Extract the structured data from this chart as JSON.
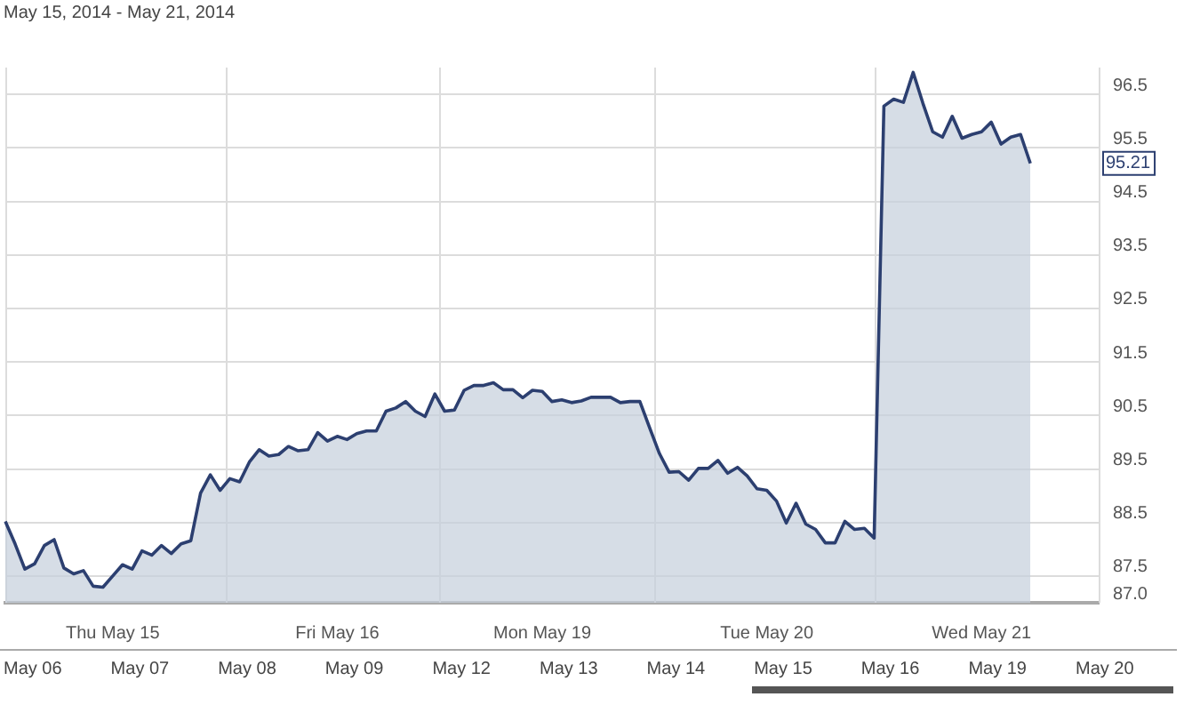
{
  "chart_data": {
    "type": "area",
    "title": "May 15, 2014 - May 21, 2014",
    "categories": [
      null,
      null,
      null,
      null,
      null,
      null,
      null,
      null,
      null,
      null,
      null,
      "Thu May 15",
      null,
      null,
      null,
      null,
      null,
      null,
      null,
      null,
      null,
      null,
      null,
      null,
      null,
      null,
      null,
      null,
      null,
      null,
      null,
      null,
      null,
      null,
      "Fri May 16",
      null,
      null,
      null,
      null,
      null,
      null,
      null,
      null,
      null,
      null,
      null,
      null,
      null,
      null,
      null,
      null,
      null,
      null,
      null,
      null,
      "Mon May 19",
      null,
      null,
      null,
      null,
      null,
      null,
      null,
      null,
      null,
      null,
      null,
      null,
      null,
      null,
      null,
      null,
      null,
      null,
      null,
      null,
      null,
      null,
      "Tue May 20",
      null,
      null,
      null,
      null,
      null,
      null,
      null,
      null,
      null,
      null,
      null,
      null,
      null,
      null,
      null,
      null,
      null,
      null,
      null,
      null,
      null,
      "Wed May 21",
      null,
      null,
      null,
      null,
      null,
      null,
      null,
      null,
      null,
      null,
      null,
      null
    ],
    "series": [
      {
        "color": "#2c3f70",
        "values": [
          88.52,
          88.1,
          87.63,
          87.73,
          88.07,
          88.18,
          87.65,
          87.54,
          87.6,
          87.31,
          87.29,
          87.5,
          87.71,
          87.63,
          87.97,
          87.89,
          88.07,
          87.92,
          88.1,
          88.16,
          89.05,
          89.39,
          89.1,
          89.32,
          89.26,
          89.63,
          89.86,
          89.74,
          89.77,
          89.92,
          89.84,
          89.86,
          90.18,
          90.02,
          90.11,
          90.05,
          90.16,
          90.21,
          90.21,
          90.58,
          90.64,
          90.76,
          90.58,
          90.48,
          90.9,
          90.58,
          90.6,
          90.97,
          91.06,
          91.06,
          91.11,
          90.98,
          90.98,
          90.83,
          90.97,
          90.95,
          90.76,
          90.79,
          90.74,
          90.77,
          90.84,
          90.84,
          90.84,
          90.74,
          90.76,
          90.76,
          90.27,
          89.79,
          89.44,
          89.45,
          89.29,
          89.51,
          89.51,
          89.66,
          89.42,
          89.53,
          89.37,
          89.13,
          89.1,
          88.9,
          88.49,
          88.86,
          88.47,
          88.37,
          88.12,
          88.12,
          88.52,
          88.37,
          88.39,
          88.21,
          96.28,
          96.41,
          96.35,
          96.91,
          96.33,
          95.8,
          95.7,
          96.09,
          95.68,
          95.75,
          95.8,
          95.98,
          95.57,
          95.7,
          95.75,
          95.21,
          null,
          null,
          null,
          null,
          null,
          null,
          null
        ]
      }
    ],
    "ylim": [
      87,
      97
    ],
    "yticks": [
      {
        "value": 87,
        "label": "87.0"
      },
      87.5,
      88.5,
      89.5,
      90.5,
      91.5,
      92.5,
      93.5,
      94.5,
      95.5,
      96.5
    ],
    "grid": true,
    "annotations": [
      {
        "text": "95.21",
        "y": 95.21
      },
      "May 06",
      "May 07",
      "May 08",
      "May 09",
      "May 12",
      "May 13",
      "May 14",
      "May 15",
      "May 16",
      "May 19",
      "May 20"
    ]
  }
}
